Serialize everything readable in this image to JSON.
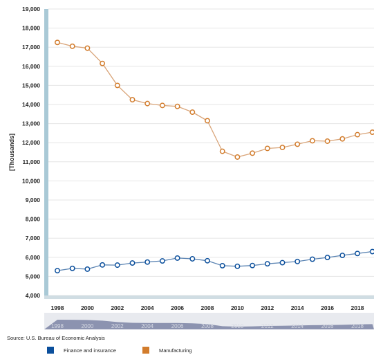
{
  "source_note": "Source: U.S. Bureau of Economic Analysis",
  "colors": {
    "finance": "#0b4f9c",
    "manufacturing": "#d27c2c",
    "finance_line": "#5b84b3",
    "manufacturing_line": "#d9a57a",
    "axis_bar": "#a9c9d6",
    "navigator": "#8c93b0"
  },
  "chart_data": {
    "type": "line",
    "ylabel": "[Thousands]",
    "ylim": [
      4000,
      19000
    ],
    "y_ticks": [
      "4,000",
      "5,000",
      "6,000",
      "7,000",
      "8,000",
      "9,000",
      "10,000",
      "11,000",
      "12,000",
      "13,000",
      "14,000",
      "15,000",
      "16,000",
      "17,000",
      "18,000",
      "19,000"
    ],
    "x_ticks": [
      "1998",
      "2000",
      "2002",
      "2004",
      "2006",
      "2008",
      "2010",
      "2012",
      "2014",
      "2016",
      "2018"
    ],
    "x": [
      1998,
      1999,
      2000,
      2001,
      2002,
      2003,
      2004,
      2005,
      2006,
      2007,
      2008,
      2009,
      2010,
      2011,
      2012,
      2013,
      2014,
      2015,
      2016,
      2017,
      2018,
      2019
    ],
    "grid": true,
    "legend": "bottom",
    "series": [
      {
        "name": "Finance and insurance",
        "values": [
          5300,
          5420,
          5380,
          5600,
          5590,
          5700,
          5750,
          5810,
          5960,
          5920,
          5820,
          5560,
          5530,
          5570,
          5660,
          5720,
          5780,
          5900,
          5990,
          6100,
          6200,
          6300
        ]
      },
      {
        "name": "Manufacturing",
        "values": [
          17250,
          17050,
          16950,
          16150,
          15000,
          14250,
          14050,
          13950,
          13900,
          13600,
          13150,
          11550,
          11250,
          11450,
          11700,
          11750,
          11920,
          12100,
          12080,
          12200,
          12420,
          12550
        ]
      }
    ]
  }
}
